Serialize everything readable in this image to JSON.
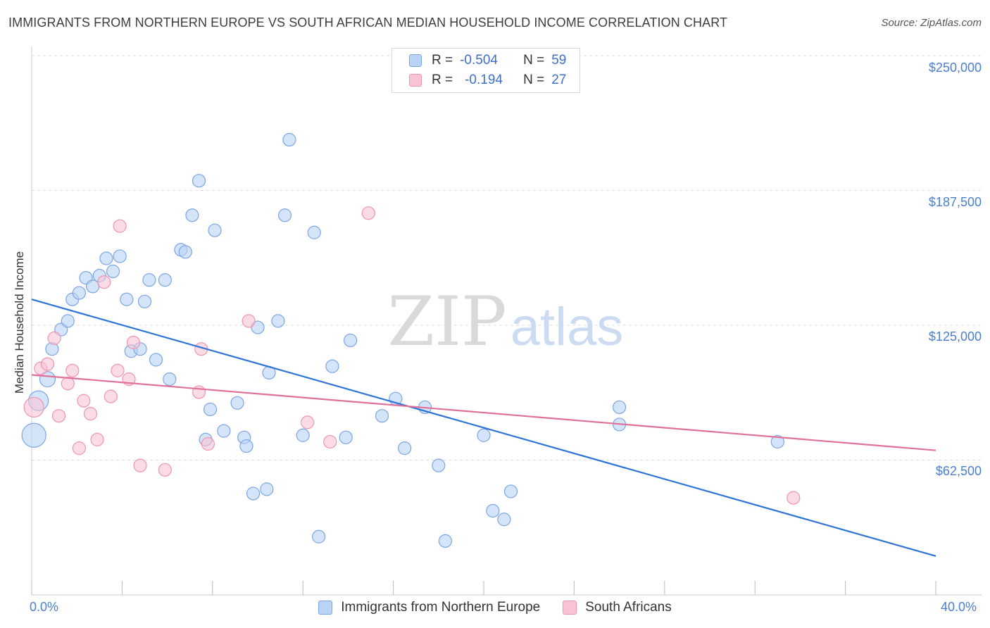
{
  "title": "IMMIGRANTS FROM NORTHERN EUROPE VS SOUTH AFRICAN MEDIAN HOUSEHOLD INCOME CORRELATION CHART",
  "source": "Source: ZipAtlas.com",
  "watermark": {
    "zip": "ZIP",
    "atlas": "atlas"
  },
  "legend": {
    "r_label": "R =",
    "n_label": "N =",
    "rows": [
      {
        "r": "-0.504",
        "n": "59"
      },
      {
        "r": "-0.194",
        "n": "27"
      }
    ]
  },
  "colors": {
    "blue_fill": "#b9d3f5",
    "blue_stroke": "#7aa5e6",
    "blue_line": "#2e74d6",
    "pink_fill": "#f8c3d3",
    "pink_stroke": "#ee94b1",
    "pink_line": "#e0709a",
    "tick_text": "#4a7fd0",
    "grid": "#dddddd"
  },
  "chart_data": {
    "type": "scatter",
    "title": "IMMIGRANTS FROM NORTHERN EUROPE VS SOUTH AFRICAN MEDIAN HOUSEHOLD INCOME CORRELATION CHART",
    "xlabel": "",
    "ylabel": "Median Household Income",
    "xlim": [
      0,
      40
    ],
    "ylim": [
      0,
      250000
    ],
    "x_tick_labels": [
      "0.0%",
      "40.0%"
    ],
    "y_ticks": [
      62500,
      125000,
      187500,
      250000
    ],
    "y_tick_labels": [
      "$62,500",
      "$125,000",
      "$187,500",
      "$250,000"
    ],
    "grid": true,
    "legend_position": "top-center",
    "series": [
      {
        "name": "Immigrants from Northern Europe",
        "color": "blue",
        "trend": [
          [
            0,
            137000
          ],
          [
            40,
            18000
          ]
        ],
        "points": [
          [
            0.3,
            90000,
            14
          ],
          [
            0.7,
            100000,
            11
          ],
          [
            0.9,
            114000,
            9
          ],
          [
            1.3,
            123000,
            9
          ],
          [
            1.6,
            127000,
            9
          ],
          [
            1.8,
            137000,
            9
          ],
          [
            2.1,
            140000,
            9
          ],
          [
            2.4,
            147000,
            9
          ],
          [
            2.7,
            143000,
            9
          ],
          [
            3.0,
            148000,
            9
          ],
          [
            3.3,
            156000,
            9
          ],
          [
            3.6,
            150000,
            9
          ],
          [
            3.9,
            157000,
            9
          ],
          [
            4.2,
            137000,
            9
          ],
          [
            4.4,
            113000,
            9
          ],
          [
            4.8,
            114000,
            9
          ],
          [
            5.0,
            136000,
            9
          ],
          [
            5.2,
            146000,
            9
          ],
          [
            5.5,
            109000,
            9
          ],
          [
            5.9,
            146000,
            9
          ],
          [
            6.1,
            100000,
            9
          ],
          [
            6.6,
            160000,
            9
          ],
          [
            6.8,
            159000,
            9
          ],
          [
            7.1,
            176000,
            9
          ],
          [
            7.4,
            192000,
            9
          ],
          [
            7.7,
            72000,
            9
          ],
          [
            7.9,
            86000,
            9
          ],
          [
            8.1,
            169000,
            9
          ],
          [
            8.5,
            76000,
            9
          ],
          [
            9.1,
            89000,
            9
          ],
          [
            9.4,
            73000,
            9
          ],
          [
            9.5,
            69000,
            9
          ],
          [
            9.8,
            47000,
            9
          ],
          [
            10.0,
            124000,
            9
          ],
          [
            10.4,
            49000,
            9
          ],
          [
            10.5,
            103000,
            9
          ],
          [
            10.9,
            127000,
            9
          ],
          [
            11.2,
            176000,
            9
          ],
          [
            11.4,
            211000,
            9
          ],
          [
            12.0,
            74000,
            9
          ],
          [
            12.5,
            168000,
            9
          ],
          [
            12.7,
            27000,
            9
          ],
          [
            13.3,
            106000,
            9
          ],
          [
            13.9,
            73000,
            9
          ],
          [
            14.1,
            118000,
            9
          ],
          [
            15.5,
            83000,
            9
          ],
          [
            16.1,
            91000,
            9
          ],
          [
            16.5,
            68000,
            9
          ],
          [
            17.4,
            87000,
            9
          ],
          [
            18.0,
            60000,
            9
          ],
          [
            18.3,
            25000,
            9
          ],
          [
            20.0,
            74000,
            9
          ],
          [
            20.4,
            39000,
            9
          ],
          [
            20.9,
            35000,
            9
          ],
          [
            21.2,
            48000,
            9
          ],
          [
            26.0,
            87000,
            9
          ],
          [
            26.0,
            79000,
            9
          ],
          [
            33.0,
            71000,
            9
          ],
          [
            0.1,
            74000,
            17
          ]
        ]
      },
      {
        "name": "South Africans",
        "color": "pink",
        "trend": [
          [
            0,
            102000
          ],
          [
            40,
            67000
          ]
        ],
        "points": [
          [
            0.1,
            87000,
            14
          ],
          [
            0.4,
            105000,
            9
          ],
          [
            0.7,
            107000,
            9
          ],
          [
            1.0,
            119000,
            9
          ],
          [
            1.2,
            83000,
            9
          ],
          [
            1.6,
            98000,
            9
          ],
          [
            1.8,
            104000,
            9
          ],
          [
            2.1,
            68000,
            9
          ],
          [
            2.3,
            90000,
            9
          ],
          [
            2.6,
            84000,
            9
          ],
          [
            2.9,
            72000,
            9
          ],
          [
            3.2,
            145000,
            9
          ],
          [
            3.5,
            92000,
            9
          ],
          [
            3.8,
            104000,
            9
          ],
          [
            3.9,
            171000,
            9
          ],
          [
            4.3,
            100000,
            9
          ],
          [
            4.5,
            117000,
            9
          ],
          [
            4.8,
            60000,
            9
          ],
          [
            5.9,
            58000,
            9
          ],
          [
            7.4,
            94000,
            9
          ],
          [
            7.5,
            114000,
            9
          ],
          [
            7.8,
            70000,
            9
          ],
          [
            9.6,
            127000,
            9
          ],
          [
            12.2,
            80000,
            9
          ],
          [
            13.2,
            71000,
            9
          ],
          [
            14.9,
            177000,
            9
          ],
          [
            33.7,
            45000,
            9
          ]
        ]
      }
    ]
  }
}
